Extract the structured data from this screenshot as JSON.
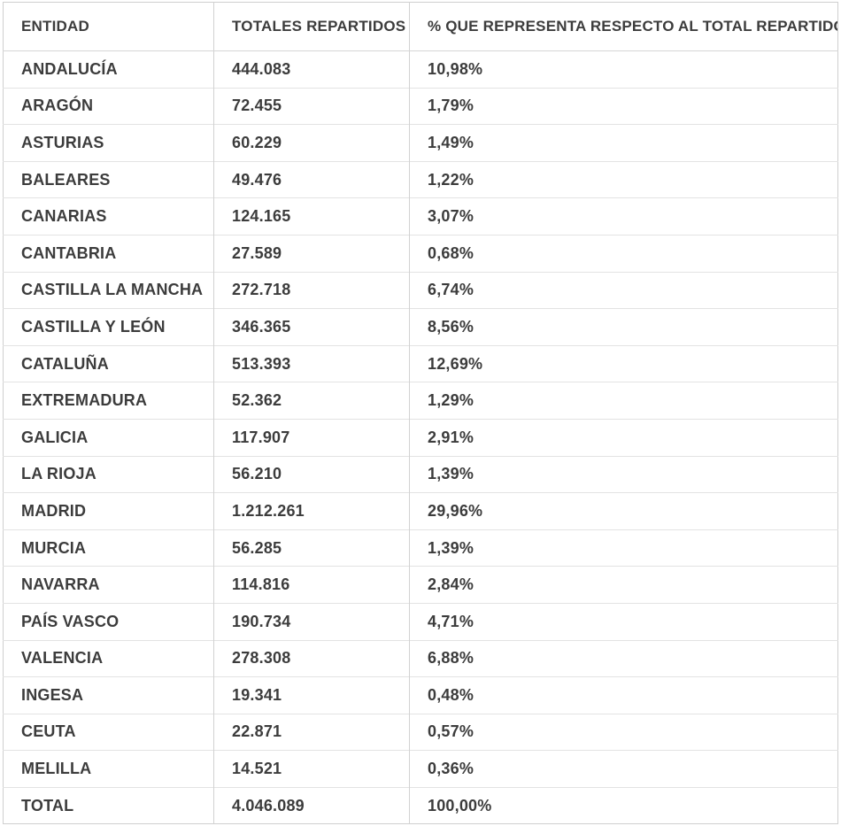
{
  "table": {
    "columns": [
      "ENTIDAD",
      "TOTALES REPARTIDOS",
      "% QUE REPRESENTA RESPECTO AL TOTAL REPARTIDO"
    ],
    "rows": [
      {
        "entidad": "ANDALUCÍA",
        "totales": "444.083",
        "porcentaje": "10,98%"
      },
      {
        "entidad": "ARAGÓN",
        "totales": "72.455",
        "porcentaje": "1,79%"
      },
      {
        "entidad": "ASTURIAS",
        "totales": "60.229",
        "porcentaje": "1,49%"
      },
      {
        "entidad": "BALEARES",
        "totales": "49.476",
        "porcentaje": "1,22%"
      },
      {
        "entidad": "CANARIAS",
        "totales": "124.165",
        "porcentaje": "3,07%"
      },
      {
        "entidad": "CANTABRIA",
        "totales": "27.589",
        "porcentaje": "0,68%"
      },
      {
        "entidad": "CASTILLA LA MANCHA",
        "totales": "272.718",
        "porcentaje": "6,74%"
      },
      {
        "entidad": "CASTILLA Y LEÓN",
        "totales": "346.365",
        "porcentaje": "8,56%"
      },
      {
        "entidad": "CATALUÑA",
        "totales": "513.393",
        "porcentaje": "12,69%"
      },
      {
        "entidad": "EXTREMADURA",
        "totales": "52.362",
        "porcentaje": "1,29%"
      },
      {
        "entidad": "GALICIA",
        "totales": "117.907",
        "porcentaje": "2,91%"
      },
      {
        "entidad": "LA RIOJA",
        "totales": "56.210",
        "porcentaje": "1,39%"
      },
      {
        "entidad": "MADRID",
        "totales": "1.212.261",
        "porcentaje": "29,96%"
      },
      {
        "entidad": "MURCIA",
        "totales": "56.285",
        "porcentaje": "1,39%"
      },
      {
        "entidad": "NAVARRA",
        "totales": "114.816",
        "porcentaje": "2,84%"
      },
      {
        "entidad": "PAÍS VASCO",
        "totales": "190.734",
        "porcentaje": "4,71%"
      },
      {
        "entidad": "VALENCIA",
        "totales": "278.308",
        "porcentaje": "6,88%"
      },
      {
        "entidad": "INGESA",
        "totales": "19.341",
        "porcentaje": "0,48%"
      },
      {
        "entidad": "CEUTA",
        "totales": "22.871",
        "porcentaje": "0,57%"
      },
      {
        "entidad": "MELILLA",
        "totales": "14.521",
        "porcentaje": "0,36%"
      },
      {
        "entidad": "TOTAL",
        "totales": "4.046.089",
        "porcentaje": "100,00%"
      }
    ]
  },
  "colors": {
    "text": "#3c3c3c",
    "border_outer": "#cfcfcf",
    "border_vertical": "#d2d2d2",
    "border_horizontal": "#e3e3e3",
    "background": "#ffffff"
  }
}
